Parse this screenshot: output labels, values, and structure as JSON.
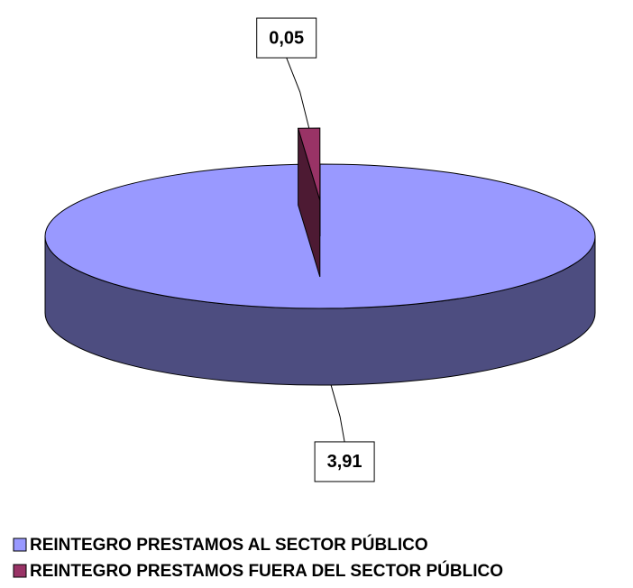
{
  "chart_data": {
    "type": "pie",
    "categories": [
      "REINTEGRO PRESTAMOS AL SECTOR PÚBLICO",
      "REINTEGRO PRESTAMOS FUERA DEL SECTOR PÚBLICO"
    ],
    "values": [
      3.91,
      0.05
    ],
    "value_labels": [
      "3,91",
      "0,05"
    ],
    "colors": [
      "#9999ff",
      "#993366"
    ],
    "legend": "bottom"
  }
}
